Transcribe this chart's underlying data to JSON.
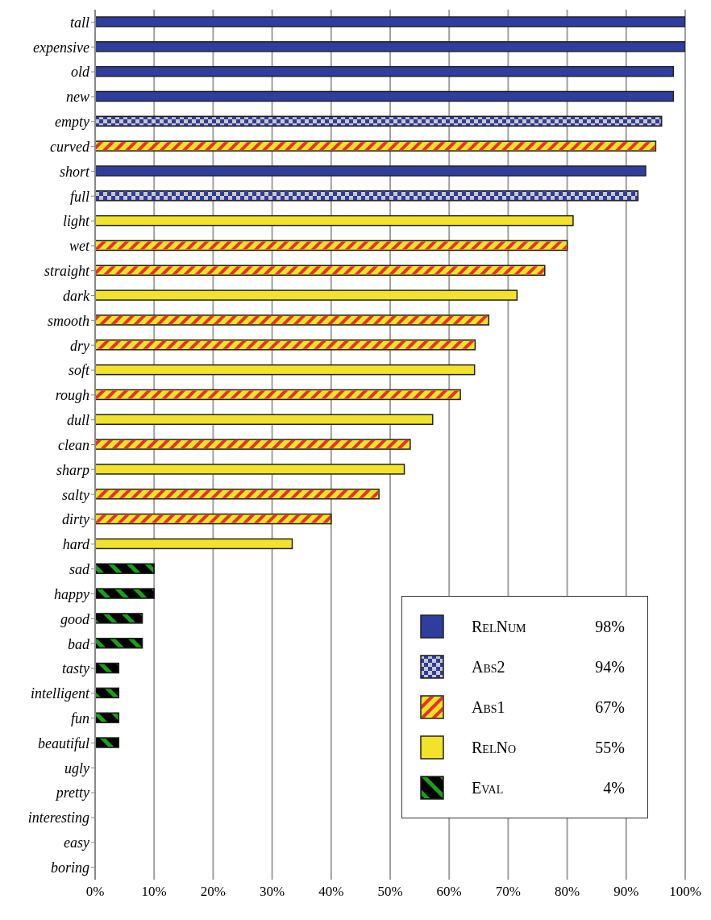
{
  "chart_data": {
    "type": "bar",
    "orientation": "horizontal",
    "stacked": true,
    "categories": [
      "tall",
      "expensive",
      "old",
      "new",
      "empty",
      "curved",
      "short",
      "full",
      "light",
      "wet",
      "straight",
      "dark",
      "smooth",
      "dry",
      "soft",
      "rough",
      "dull",
      "clean",
      "sharp",
      "salty",
      "dirty",
      "hard",
      "sad",
      "happy",
      "good",
      "bad",
      "tasty",
      "intelligent",
      "fun",
      "beautiful",
      "ugly",
      "pretty",
      "interesting",
      "easy",
      "boring"
    ],
    "series": [
      {
        "name": "RelNum",
        "color": "#2e3d9e",
        "values": [
          100,
          100,
          98,
          98,
          null,
          null,
          93.3,
          null,
          null,
          null,
          null,
          null,
          null,
          null,
          null,
          null,
          null,
          null,
          null,
          null,
          null,
          null,
          null,
          null,
          null,
          null,
          null,
          null,
          null,
          null,
          null,
          null,
          null,
          null,
          null
        ]
      },
      {
        "name": "Abs2",
        "color": "#2e3d9e",
        "values": [
          null,
          null,
          null,
          null,
          96,
          null,
          null,
          92,
          null,
          null,
          null,
          null,
          null,
          null,
          null,
          null,
          null,
          null,
          null,
          null,
          null,
          null,
          null,
          null,
          null,
          null,
          null,
          null,
          null,
          null,
          null,
          null,
          null,
          null,
          null
        ]
      },
      {
        "name": "Abs1",
        "color": "#f2e229",
        "values": [
          null,
          null,
          null,
          null,
          null,
          95,
          null,
          null,
          null,
          80,
          76.2,
          null,
          66.7,
          64.4,
          null,
          61.9,
          null,
          53.4,
          null,
          48.1,
          40,
          null,
          null,
          null,
          null,
          null,
          null,
          null,
          null,
          null,
          null,
          null,
          null,
          null,
          null
        ]
      },
      {
        "name": "RelNo",
        "color": "#f2e229",
        "values": [
          null,
          null,
          null,
          null,
          null,
          null,
          null,
          null,
          81,
          null,
          null,
          71.5,
          null,
          null,
          64.3,
          null,
          57.2,
          null,
          52.4,
          null,
          null,
          33.4,
          null,
          null,
          null,
          null,
          null,
          null,
          null,
          null,
          null,
          null,
          null,
          null,
          null
        ]
      },
      {
        "name": "Eval",
        "color": "#000000",
        "values": [
          null,
          null,
          null,
          null,
          null,
          null,
          null,
          null,
          null,
          null,
          null,
          null,
          null,
          null,
          null,
          null,
          null,
          null,
          null,
          null,
          null,
          null,
          10,
          10,
          8,
          8,
          4,
          4,
          4,
          4,
          null,
          null,
          null,
          null,
          null
        ]
      }
    ],
    "xlim": [
      0,
      100
    ],
    "xticks": [
      {
        "value": 0,
        "label": "0%"
      },
      {
        "value": 10,
        "label": "10%"
      },
      {
        "value": 20,
        "label": "20%"
      },
      {
        "value": 30,
        "label": "30%"
      },
      {
        "value": 40,
        "label": "40%"
      },
      {
        "value": 50,
        "label": "50%"
      },
      {
        "value": 60,
        "label": "60%"
      },
      {
        "value": 70,
        "label": "70%"
      },
      {
        "value": 80,
        "label": "80%"
      },
      {
        "value": 90,
        "label": "90%"
      },
      {
        "value": 100,
        "label": "100%"
      }
    ],
    "grid": "x",
    "legend": "bottom right",
    "annotations": [
      "98%",
      "94%",
      "67%",
      "55%",
      "4%"
    ]
  }
}
